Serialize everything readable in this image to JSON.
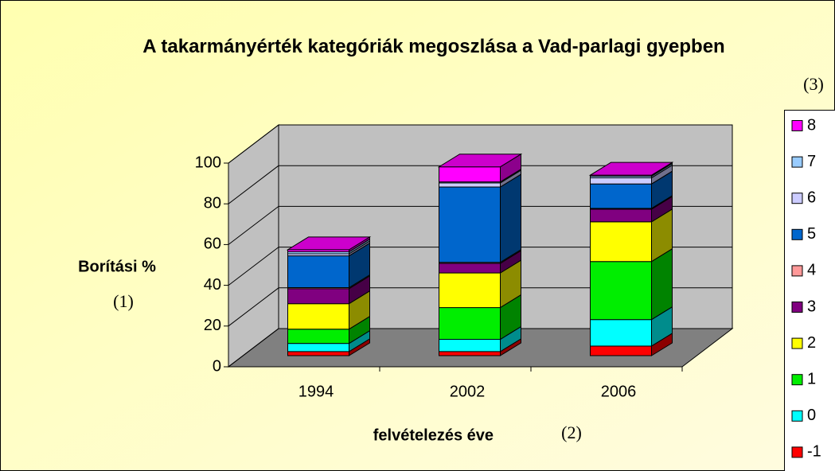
{
  "chart_data": {
    "type": "bar3d_stacked",
    "title": "A takarmányérték kategóriák megoszlása a Vad-parlagi gyepben",
    "x_label": "felvételezés éve",
    "y_label": "Borítási %",
    "annotations": [
      "(1)",
      "(2)",
      "(3)"
    ],
    "categories": [
      "1994",
      "2002",
      "2006"
    ],
    "series": [
      {
        "name": "-1",
        "color": "#ff0000",
        "values": [
          2,
          2,
          4.7
        ]
      },
      {
        "name": "0",
        "color": "#00ffff",
        "values": [
          4,
          6,
          13
        ]
      },
      {
        "name": "1",
        "color": "#00ee00",
        "values": [
          7,
          15.6,
          28.5
        ]
      },
      {
        "name": "2",
        "color": "#ffff00",
        "values": [
          12.5,
          17,
          19.5
        ]
      },
      {
        "name": "3",
        "color": "#800080",
        "values": [
          7.4,
          4.7,
          6.2
        ]
      },
      {
        "name": "4",
        "color": "#ff9999",
        "values": [
          0.5,
          0.5,
          0.4
        ]
      },
      {
        "name": "5",
        "color": "#0066cc",
        "values": [
          15.6,
          37,
          12
        ]
      },
      {
        "name": "6",
        "color": "#ccccff",
        "values": [
          1,
          2,
          3
        ]
      },
      {
        "name": "7",
        "color": "#99ccff",
        "values": [
          1,
          0.5,
          0.8
        ]
      },
      {
        "name": "8",
        "color": "#ff00ff",
        "values": [
          1,
          7.4,
          0.5
        ]
      }
    ],
    "ylim": [
      0,
      100
    ],
    "yticks": [
      0,
      20,
      40,
      60,
      80,
      100
    ],
    "grid": true,
    "legend": "right"
  }
}
